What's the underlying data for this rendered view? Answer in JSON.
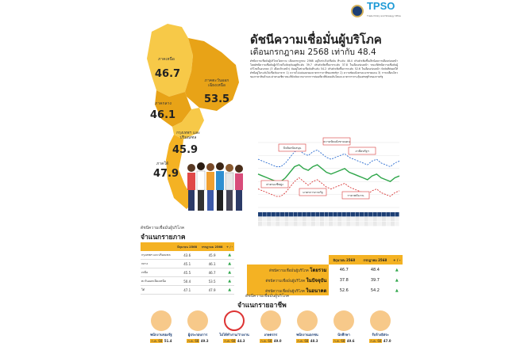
{
  "header": {
    "title": "ดัชนีความเชื่อมั่นผู้บริโภค",
    "subtitle": "เดือนกรกฎาคม 2568 เท่ากับ 48.4",
    "logo_text": "TPSO",
    "logo_sub": "Trade Policy and Strategy Office",
    "description": "ดัชนีความเชื่อมั่นผู้บริโภคโดยรวม เดือนกรกฎาคม 2568 อยู่ในช่วงไม่เชื่อมั่น ที่ระดับ 48.4 ปรับตัวเพิ่มขึ้นเล็กน้อยจากเดือนก่อนหน้า โดยดัชนีความเชื่อมั่นผู้บริโภคในปัจจุบันอยู่ที่ระดับ 39.7 ปรับตัวเพิ่มขึ้นจากระดับ 37.8 ในเดือนก่อนหน้า ขณะที่ดัชนีความเชื่อมั่นผู้บริโภคในอนาคต (3 เดือนข้างหน้า) ยังอยู่ในช่วงเชื่อมั่นที่ระดับ 54.2 ปรับตัวเพิ่มขึ้นจากระดับ 52.6 ในเดือนก่อนหน้า ปัจจัยที่ส่งผลให้ดัชนีอยู่ในระดับไม่เชื่อมั่นมาจาก 1) ความไม่แน่นอนของมาตรการภาษีของสหรัฐฯ 2) ความขัดแย้งตามแนวชายแดน 3) การเคลื่อนไหวของราคาสินค้าและค่าครองชีพ ขณะที่ปัจจัยบวกมาจากการท่องเที่ยวที่ยังคงเติบโตและมาตรการกระตุ้นเศรษฐกิจของภาครัฐ"
  },
  "regions": {
    "north": {
      "label": "ภาคเหนือ",
      "value": "46.7"
    },
    "northeast": {
      "label": "ภาคตะวันออกเฉียงเหนือ",
      "value": "53.5"
    },
    "central": {
      "label": "ภาคกลาง",
      "value": "46.1"
    },
    "bangkok": {
      "label": "กรุงเทพฯ และปริมณฑล",
      "value": "45.9"
    },
    "south": {
      "label": "ภาคใต้",
      "value": "47.9"
    }
  },
  "region_table": {
    "section_small": "ดัชนีความเชื่อมั่นผู้บริโภค",
    "section_big": "จำแนกรายภาค",
    "headers": [
      "",
      "มิถุนายน 2568",
      "กรกฎาคม 2568",
      "+ / -"
    ],
    "rows": [
      {
        "name": "กรุงเทพฯ และปริมณฑล",
        "jun": "43.6",
        "jul": "45.9"
      },
      {
        "name": "กลาง",
        "jun": "45.1",
        "jul": "46.1"
      },
      {
        "name": "เหนือ",
        "jun": "45.5",
        "jul": "46.7"
      },
      {
        "name": "ตะวันออกเฉียงเหนือ",
        "jun": "50.4",
        "jul": "53.5"
      },
      {
        "name": "ใต้",
        "jun": "47.1",
        "jul": "47.9"
      }
    ]
  },
  "chart_callouts": {
    "c1": "ปัจจัยสนับสนุน",
    "c2": "ความขัดแย้งชายแดน",
    "c3": "ภาษีสหรัฐฯ",
    "c4": "ค่าครองชีพสูง",
    "c5": "มาตรการภาครัฐ",
    "c6": "ราคาพลังงาน"
  },
  "chart_data": {
    "type": "line",
    "series": [
      {
        "values": [
          48,
          47,
          46,
          45,
          44,
          44,
          46,
          49,
          52,
          53,
          51,
          50,
          52,
          53,
          51,
          49,
          48,
          49,
          50,
          51,
          49,
          48,
          47,
          46,
          45,
          47,
          48,
          46,
          45,
          44,
          46,
          47
        ]
      },
      {
        "values": [
          40,
          39,
          38,
          37,
          36,
          36,
          38,
          41,
          44,
          46,
          44,
          42,
          44,
          45,
          43,
          41,
          40,
          41,
          42,
          43,
          41,
          40,
          39,
          38,
          37,
          39,
          40,
          38,
          37,
          36,
          38,
          39
        ]
      },
      {
        "values": [
          56,
          55,
          54,
          53,
          52,
          52,
          54,
          57,
          60,
          61,
          59,
          58,
          60,
          61,
          59,
          57,
          56,
          57,
          58,
          59,
          57,
          56,
          55,
          54,
          53,
          55,
          56,
          54,
          53,
          52,
          54,
          55
        ]
      }
    ],
    "ylim": [
      30,
      65
    ]
  },
  "comparison": {
    "headers": [
      "",
      "มิถุนายน 2568",
      "กรกฎาคม 2568",
      "+ / -"
    ],
    "rows": [
      {
        "prefix": "ดัชนีความเชื่อมั่นผู้บริโภค",
        "name": "โดยรวม",
        "jun": "46.7",
        "jul": "48.4"
      },
      {
        "prefix": "ดัชนีความเชื่อมั่นผู้บริโภค",
        "name": "ในปัจจุบัน",
        "jun": "37.8",
        "jul": "39.7"
      },
      {
        "prefix": "ดัชนีความเชื่อมั่นผู้บริโภค",
        "name": "ในอนาคต",
        "jun": "52.6",
        "jul": "54.2"
      }
    ]
  },
  "occupation": {
    "section_small": "ดัชนีความเชื่อมั่นผู้บริโภค",
    "section_big": "จำแนกรายอาชีพ",
    "items": [
      {
        "label": "พนักงานของรัฐ",
        "month": "ก.ค. 68",
        "value": "51.4"
      },
      {
        "label": "ผู้ประกอบการ",
        "month": "ก.ค. 68",
        "value": "49.3"
      },
      {
        "label": "ไม่ได้ทำงาน/ว่างงาน",
        "month": "ก.ค. 68",
        "value": "44.3"
      },
      {
        "label": "เกษตรกร",
        "month": "ก.ค. 68",
        "value": "49.0"
      },
      {
        "label": "พนักงานเอกชน",
        "month": "ก.ค. 68",
        "value": "48.3"
      },
      {
        "label": "นักศึกษา",
        "month": "ก.ค. 68",
        "value": "49.6"
      },
      {
        "label": "รับจ้างอิสระ",
        "month": "ก.ค. 68",
        "value": "47.0"
      }
    ]
  },
  "colors": {
    "accent": "#f4b223",
    "map_light": "#f7c948",
    "map_dark": "#e8a317",
    "up": "#2fa64a"
  }
}
